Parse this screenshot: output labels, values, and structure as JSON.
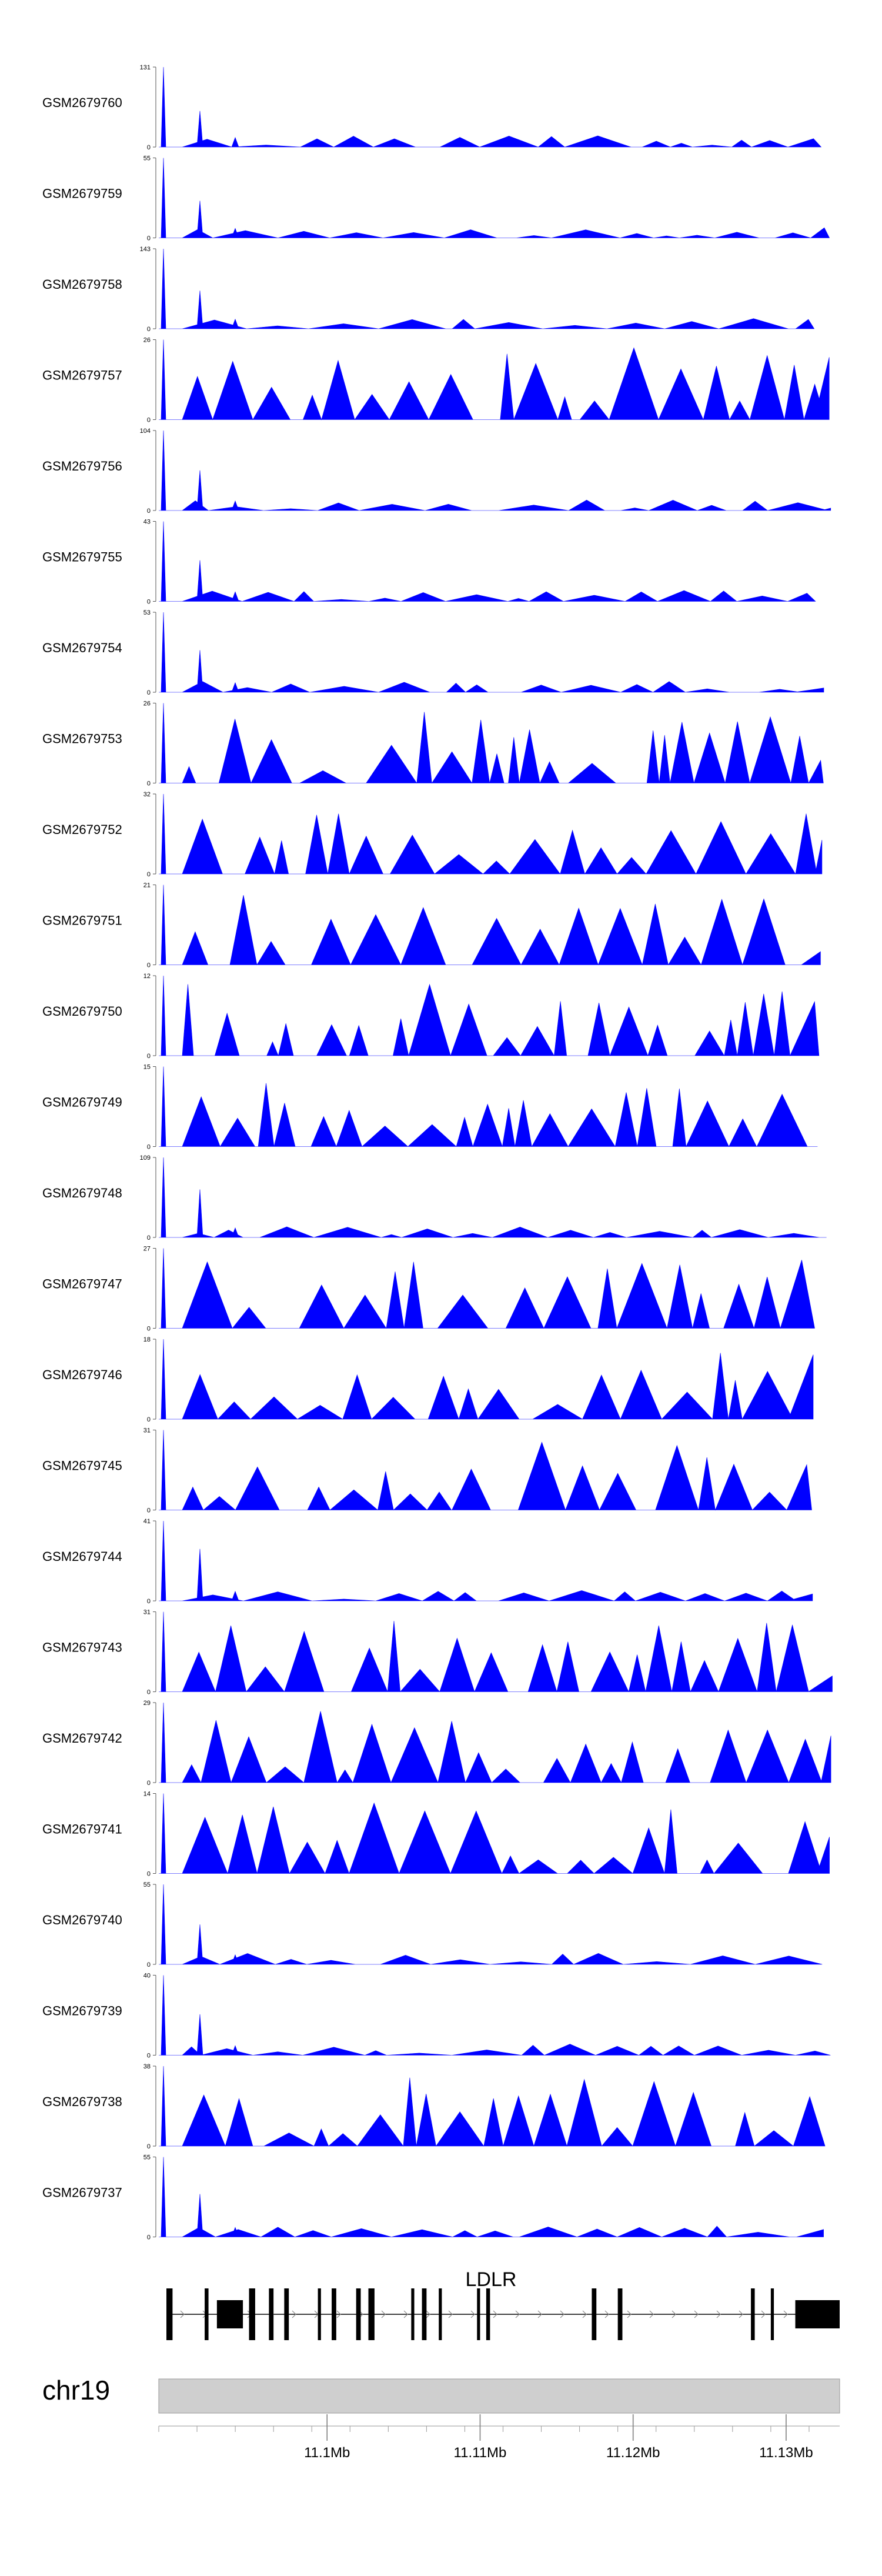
{
  "chart_data": {
    "type": "area",
    "color": "#0000ff",
    "x_range": [
      11089000,
      11133500
    ],
    "tracks": [
      {
        "name": "GSM2679760",
        "ymax": 131
      },
      {
        "name": "GSM2679759",
        "ymax": 55
      },
      {
        "name": "GSM2679758",
        "ymax": 143
      },
      {
        "name": "GSM2679757",
        "ymax": 26
      },
      {
        "name": "GSM2679756",
        "ymax": 104
      },
      {
        "name": "GSM2679755",
        "ymax": 43
      },
      {
        "name": "GSM2679754",
        "ymax": 53
      },
      {
        "name": "GSM2679753",
        "ymax": 26
      },
      {
        "name": "GSM2679752",
        "ymax": 32
      },
      {
        "name": "GSM2679751",
        "ymax": 21
      },
      {
        "name": "GSM2679750",
        "ymax": 12
      },
      {
        "name": "GSM2679749",
        "ymax": 15
      },
      {
        "name": "GSM2679748",
        "ymax": 109
      },
      {
        "name": "GSM2679747",
        "ymax": 27
      },
      {
        "name": "GSM2679746",
        "ymax": 18
      },
      {
        "name": "GSM2679745",
        "ymax": 31
      },
      {
        "name": "GSM2679744",
        "ymax": 41
      },
      {
        "name": "GSM2679743",
        "ymax": 31
      },
      {
        "name": "GSM2679742",
        "ymax": 29
      },
      {
        "name": "GSM2679741",
        "ymax": 14
      },
      {
        "name": "GSM2679740",
        "ymax": 55
      },
      {
        "name": "GSM2679739",
        "ymax": 40
      },
      {
        "name": "GSM2679738",
        "ymax": 38
      },
      {
        "name": "GSM2679737",
        "ymax": 55
      }
    ],
    "y_min_label": "0",
    "gene": {
      "name": "LDLR",
      "start": 11089500,
      "end": 11133500,
      "exons": [
        [
          11089500,
          11089900
        ],
        [
          11092000,
          11092250
        ],
        [
          11092800,
          11094500
        ],
        [
          11094900,
          11095300
        ],
        [
          11096200,
          11096500
        ],
        [
          11097200,
          11097500
        ],
        [
          11099400,
          11099600
        ],
        [
          11100300,
          11100600
        ],
        [
          11101900,
          11102200
        ],
        [
          11102700,
          11103100
        ],
        [
          11105500,
          11105700
        ],
        [
          11106200,
          11106500
        ],
        [
          11107300,
          11107500
        ],
        [
          11109800,
          11110000
        ],
        [
          11110400,
          11110650
        ],
        [
          11117300,
          11117600
        ],
        [
          11119000,
          11119300
        ],
        [
          11127700,
          11127950
        ],
        [
          11129000,
          11129200
        ],
        [
          11130600,
          11133500
        ]
      ]
    },
    "chromosome": "chr19",
    "x_ticks": [
      {
        "pos": 11100000,
        "label": "11.1Mb"
      },
      {
        "pos": 11110000,
        "label": "11.11Mb"
      },
      {
        "pos": 11120000,
        "label": "11.12Mb"
      },
      {
        "pos": 11130000,
        "label": "11.13Mb"
      }
    ]
  }
}
